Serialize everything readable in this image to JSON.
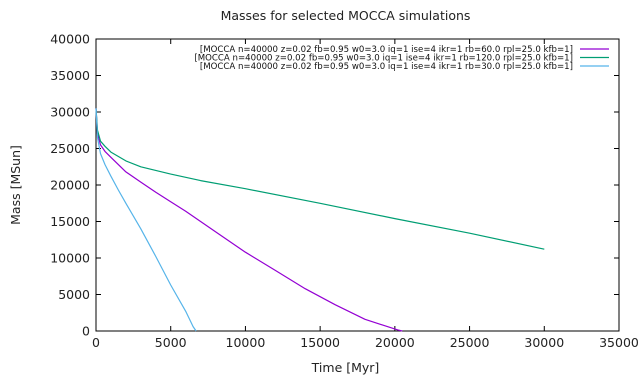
{
  "chart_data": {
    "type": "line",
    "title": "Masses for selected MOCCA simulations",
    "xlabel": "Time [Myr]",
    "ylabel": "Mass [MSun]",
    "xlim": [
      0,
      35000
    ],
    "ylim": [
      0,
      40000
    ],
    "xticks": [
      0,
      5000,
      10000,
      15000,
      20000,
      25000,
      30000,
      35000
    ],
    "yticks": [
      0,
      5000,
      10000,
      15000,
      20000,
      25000,
      30000,
      35000,
      40000
    ],
    "legend_position": "top-right",
    "grid": false,
    "series": [
      {
        "name": "[MOCCA n=40000 z=0.02 fb=0.95 w0=3.0 iq=1 ise=4 ikr=1 rb=60.0 rpl=25.0 kfb=1]",
        "color": "#9400d3",
        "x": [
          0,
          100,
          300,
          600,
          1000,
          2000,
          3000,
          4000,
          5000,
          6000,
          8000,
          10000,
          12000,
          14000,
          16000,
          18000,
          19500,
          20200,
          20500
        ],
        "y": [
          30500,
          27000,
          25500,
          24600,
          23800,
          21800,
          20400,
          19000,
          17700,
          16400,
          13600,
          10800,
          8300,
          5800,
          3600,
          1600,
          600,
          150,
          0
        ]
      },
      {
        "name": "[MOCCA n=40000 z=0.02 fb=0.95 w0=3.0 iq=1 ise=4 ikr=1 rb=120.0 rpl=25.0 kfb=1]",
        "color": "#009e73",
        "x": [
          0,
          100,
          300,
          600,
          1000,
          2000,
          3000,
          5000,
          7000,
          10000,
          15000,
          20000,
          25000,
          30000
        ],
        "y": [
          30500,
          27500,
          26000,
          25300,
          24500,
          23300,
          22500,
          21500,
          20600,
          19500,
          17500,
          15400,
          13400,
          11200
        ]
      },
      {
        "name": "[MOCCA n=40000 z=0.02 fb=0.95 w0=3.0 iq=1 ise=4 ikr=1 rb=30.0 rpl=25.0 kfb=1]",
        "color": "#56b4e9",
        "x": [
          0,
          100,
          300,
          600,
          1000,
          1500,
          2000,
          3000,
          4000,
          5000,
          6000,
          6500,
          6700
        ],
        "y": [
          30500,
          26500,
          24300,
          22800,
          21200,
          19300,
          17500,
          14000,
          10200,
          6300,
          2700,
          600,
          0
        ]
      }
    ]
  }
}
